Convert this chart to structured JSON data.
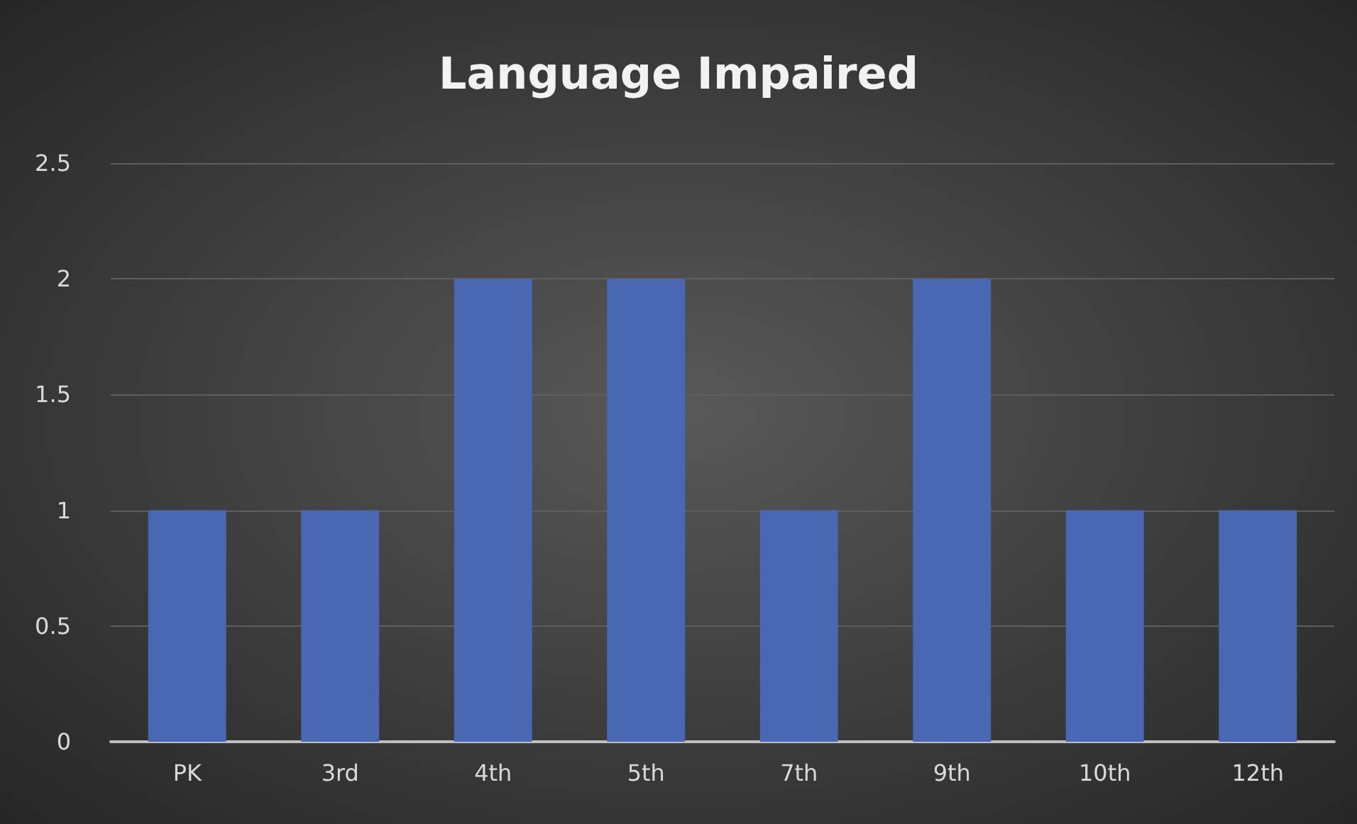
{
  "chart_data": {
    "type": "bar",
    "title": "Language Impaired",
    "categories": [
      "PK",
      "3rd",
      "4th",
      "5th",
      "7th",
      "9th",
      "10th",
      "12th"
    ],
    "values": [
      1,
      1,
      2,
      2,
      1,
      2,
      1,
      1
    ],
    "color": "#4a67b3",
    "ylim": [
      0,
      2.5
    ],
    "yticks": [
      0,
      0.5,
      1,
      1.5,
      2,
      2.5
    ],
    "grid": "y"
  }
}
